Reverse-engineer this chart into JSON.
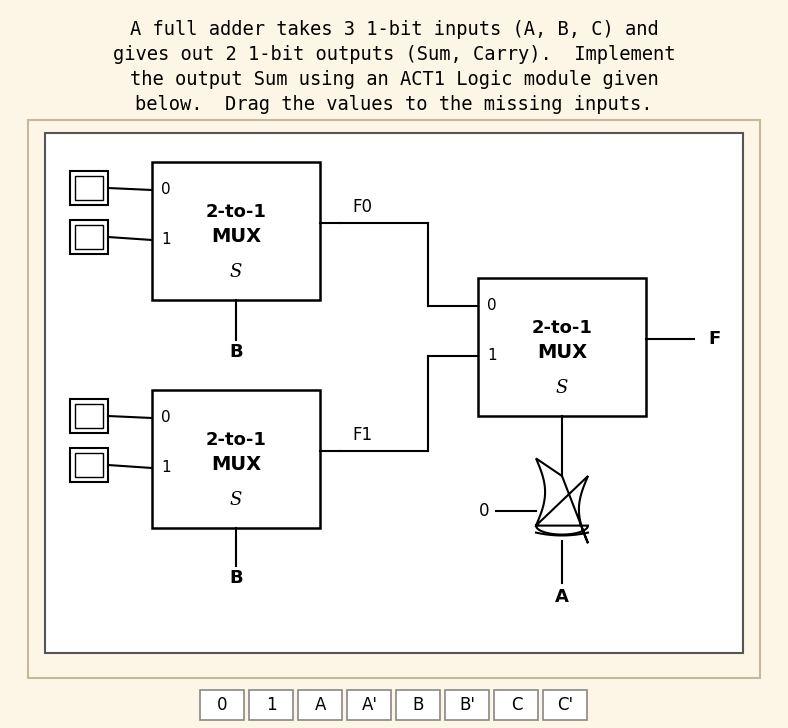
{
  "bg_outer": "#fdf5e6",
  "bg_inner": "#ffffff",
  "text_color": "#000000",
  "title_lines": [
    "A full adder takes 3 1-bit inputs (A, B, C) and",
    "gives out 2 1-bit outputs (Sum, Carry).  Implement",
    "the output Sum using an ACT1 Logic module given",
    "below.  Drag the values to the missing inputs."
  ],
  "bottom_labels": [
    "0",
    "1",
    "A",
    "A'",
    "B",
    "B'",
    "C",
    "C'"
  ]
}
